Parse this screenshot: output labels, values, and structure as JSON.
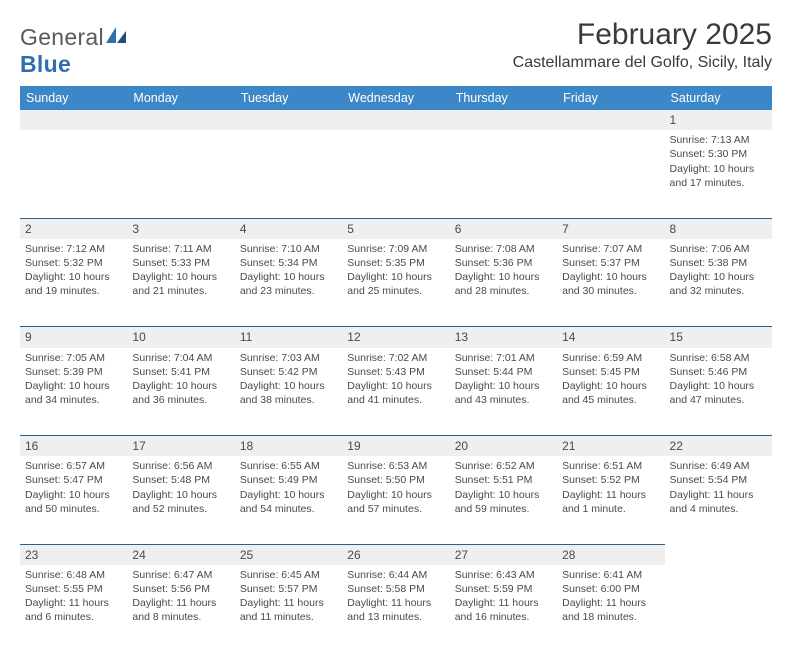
{
  "logo": {
    "word1": "General",
    "word2": "Blue"
  },
  "title": "February 2025",
  "location": "Castellammare del Golfo, Sicily, Italy",
  "header_bg": "#3b87c8",
  "weekdays": [
    "Sunday",
    "Monday",
    "Tuesday",
    "Wednesday",
    "Thursday",
    "Friday",
    "Saturday"
  ],
  "weeks": [
    [
      null,
      null,
      null,
      null,
      null,
      null,
      {
        "n": "1",
        "sr": "7:13 AM",
        "ss": "5:30 PM",
        "dl": "10 hours and 17 minutes."
      }
    ],
    [
      {
        "n": "2",
        "sr": "7:12 AM",
        "ss": "5:32 PM",
        "dl": "10 hours and 19 minutes."
      },
      {
        "n": "3",
        "sr": "7:11 AM",
        "ss": "5:33 PM",
        "dl": "10 hours and 21 minutes."
      },
      {
        "n": "4",
        "sr": "7:10 AM",
        "ss": "5:34 PM",
        "dl": "10 hours and 23 minutes."
      },
      {
        "n": "5",
        "sr": "7:09 AM",
        "ss": "5:35 PM",
        "dl": "10 hours and 25 minutes."
      },
      {
        "n": "6",
        "sr": "7:08 AM",
        "ss": "5:36 PM",
        "dl": "10 hours and 28 minutes."
      },
      {
        "n": "7",
        "sr": "7:07 AM",
        "ss": "5:37 PM",
        "dl": "10 hours and 30 minutes."
      },
      {
        "n": "8",
        "sr": "7:06 AM",
        "ss": "5:38 PM",
        "dl": "10 hours and 32 minutes."
      }
    ],
    [
      {
        "n": "9",
        "sr": "7:05 AM",
        "ss": "5:39 PM",
        "dl": "10 hours and 34 minutes."
      },
      {
        "n": "10",
        "sr": "7:04 AM",
        "ss": "5:41 PM",
        "dl": "10 hours and 36 minutes."
      },
      {
        "n": "11",
        "sr": "7:03 AM",
        "ss": "5:42 PM",
        "dl": "10 hours and 38 minutes."
      },
      {
        "n": "12",
        "sr": "7:02 AM",
        "ss": "5:43 PM",
        "dl": "10 hours and 41 minutes."
      },
      {
        "n": "13",
        "sr": "7:01 AM",
        "ss": "5:44 PM",
        "dl": "10 hours and 43 minutes."
      },
      {
        "n": "14",
        "sr": "6:59 AM",
        "ss": "5:45 PM",
        "dl": "10 hours and 45 minutes."
      },
      {
        "n": "15",
        "sr": "6:58 AM",
        "ss": "5:46 PM",
        "dl": "10 hours and 47 minutes."
      }
    ],
    [
      {
        "n": "16",
        "sr": "6:57 AM",
        "ss": "5:47 PM",
        "dl": "10 hours and 50 minutes."
      },
      {
        "n": "17",
        "sr": "6:56 AM",
        "ss": "5:48 PM",
        "dl": "10 hours and 52 minutes."
      },
      {
        "n": "18",
        "sr": "6:55 AM",
        "ss": "5:49 PM",
        "dl": "10 hours and 54 minutes."
      },
      {
        "n": "19",
        "sr": "6:53 AM",
        "ss": "5:50 PM",
        "dl": "10 hours and 57 minutes."
      },
      {
        "n": "20",
        "sr": "6:52 AM",
        "ss": "5:51 PM",
        "dl": "10 hours and 59 minutes."
      },
      {
        "n": "21",
        "sr": "6:51 AM",
        "ss": "5:52 PM",
        "dl": "11 hours and 1 minute."
      },
      {
        "n": "22",
        "sr": "6:49 AM",
        "ss": "5:54 PM",
        "dl": "11 hours and 4 minutes."
      }
    ],
    [
      {
        "n": "23",
        "sr": "6:48 AM",
        "ss": "5:55 PM",
        "dl": "11 hours and 6 minutes."
      },
      {
        "n": "24",
        "sr": "6:47 AM",
        "ss": "5:56 PM",
        "dl": "11 hours and 8 minutes."
      },
      {
        "n": "25",
        "sr": "6:45 AM",
        "ss": "5:57 PM",
        "dl": "11 hours and 11 minutes."
      },
      {
        "n": "26",
        "sr": "6:44 AM",
        "ss": "5:58 PM",
        "dl": "11 hours and 13 minutes."
      },
      {
        "n": "27",
        "sr": "6:43 AM",
        "ss": "5:59 PM",
        "dl": "11 hours and 16 minutes."
      },
      {
        "n": "28",
        "sr": "6:41 AM",
        "ss": "6:00 PM",
        "dl": "11 hours and 18 minutes."
      },
      null
    ]
  ],
  "labels": {
    "sunrise": "Sunrise:",
    "sunset": "Sunset:",
    "daylight": "Daylight:"
  }
}
